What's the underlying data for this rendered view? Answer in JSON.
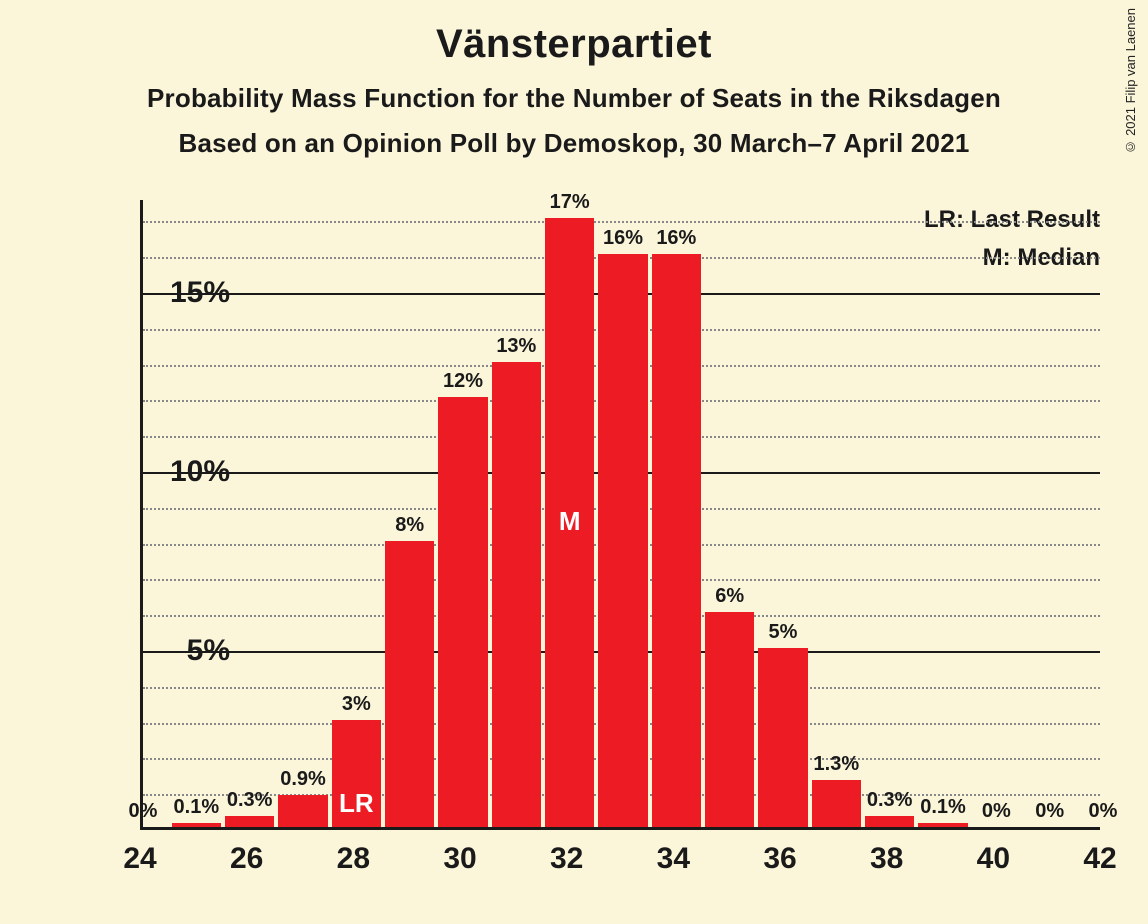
{
  "title": "Vänsterpartiet",
  "subtitle1": "Probability Mass Function for the Number of Seats in the Riksdagen",
  "subtitle2": "Based on an Opinion Poll by Demoskop, 30 March–7 April 2021",
  "copyright": "© 2021 Filip van Laenen",
  "legend": {
    "lr": "LR: Last Result",
    "m": "M: Median"
  },
  "chart": {
    "type": "bar",
    "background_color": "#fbf6da",
    "bar_color": "#ed1b23",
    "axis_color": "#1a1a1a",
    "grid_major_color": "#1a1a1a",
    "grid_minor_color": "#888888",
    "text_color": "#1a1a1a",
    "inner_label_color": "#ffffff",
    "title_fontsize": 40,
    "subtitle_fontsize": 26,
    "axis_label_fontsize": 30,
    "bar_label_fontsize": 20,
    "inner_label_fontsize": 26,
    "legend_fontsize": 24,
    "y_max": 17.6,
    "y_major_ticks": [
      5,
      10,
      15
    ],
    "y_major_labels": [
      "5%",
      "10%",
      "15%"
    ],
    "y_minor_step": 1,
    "x_ticks": [
      24,
      26,
      28,
      30,
      32,
      34,
      36,
      38,
      40,
      42
    ],
    "x_tick_labels": [
      "24",
      "26",
      "28",
      "30",
      "32",
      "34",
      "36",
      "38",
      "40",
      "42"
    ],
    "x_min": 24,
    "x_max": 42,
    "bar_width_ratio": 0.92,
    "bars": [
      {
        "x": 24,
        "value": 0,
        "label": "0%"
      },
      {
        "x": 25,
        "value": 0.1,
        "label": "0.1%"
      },
      {
        "x": 26,
        "value": 0.3,
        "label": "0.3%"
      },
      {
        "x": 27,
        "value": 0.9,
        "label": "0.9%"
      },
      {
        "x": 28,
        "value": 3,
        "label": "3%",
        "inner": "LR"
      },
      {
        "x": 29,
        "value": 8,
        "label": "8%"
      },
      {
        "x": 30,
        "value": 12,
        "label": "12%"
      },
      {
        "x": 31,
        "value": 13,
        "label": "13%"
      },
      {
        "x": 32,
        "value": 17,
        "label": "17%",
        "inner": "M"
      },
      {
        "x": 33,
        "value": 16,
        "label": "16%"
      },
      {
        "x": 34,
        "value": 16,
        "label": "16%"
      },
      {
        "x": 35,
        "value": 6,
        "label": "6%"
      },
      {
        "x": 36,
        "value": 5,
        "label": "5%"
      },
      {
        "x": 37,
        "value": 1.3,
        "label": "1.3%"
      },
      {
        "x": 38,
        "value": 0.3,
        "label": "0.3%"
      },
      {
        "x": 39,
        "value": 0.1,
        "label": "0.1%"
      },
      {
        "x": 40,
        "value": 0,
        "label": "0%"
      },
      {
        "x": 41,
        "value": 0,
        "label": "0%"
      },
      {
        "x": 42,
        "value": 0,
        "label": "0%"
      }
    ]
  }
}
